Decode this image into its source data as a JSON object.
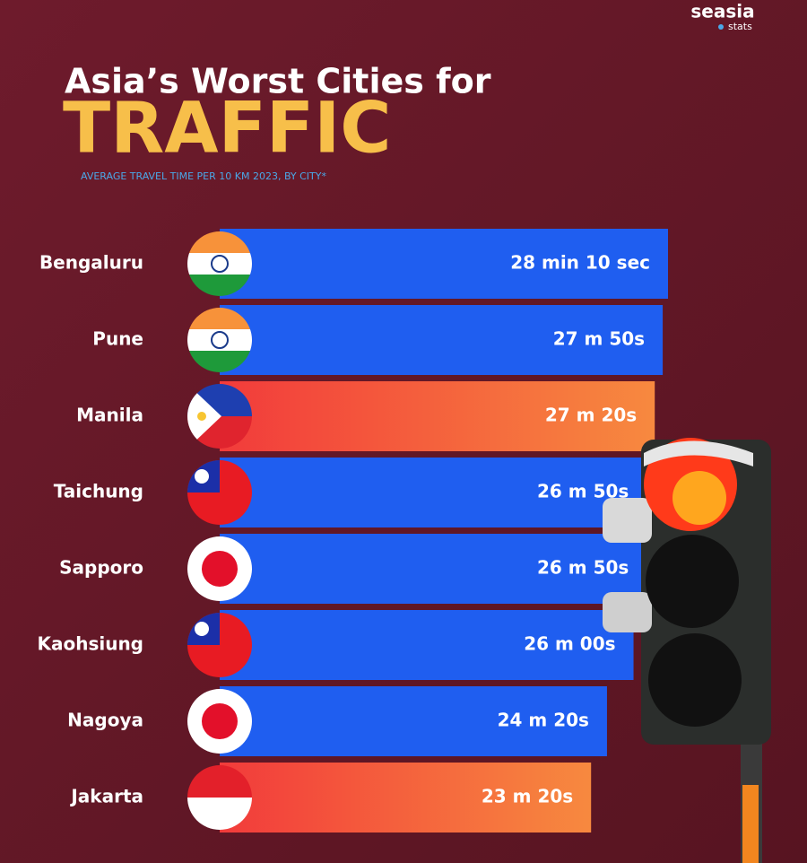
{
  "chart_data": {
    "type": "bar",
    "orientation": "horizontal",
    "brand": "seasia",
    "brand_sub": "stats",
    "title": "Asia’s Worst Cities for",
    "title_emphasis": "TRAFFIC",
    "subtitle": "AVERAGE TRAVEL TIME PER 10 KM 2023, BY CITY*",
    "categories": [
      "Bengaluru",
      "Pune",
      "Manila",
      "Taichung",
      "Sapporo",
      "Kaohsiung",
      "Nagoya",
      "Jakarta"
    ],
    "values": [
      1690,
      1670,
      1640,
      1610,
      1610,
      1560,
      1460,
      1400
    ],
    "value_labels": [
      "28 min 10 sec",
      "27 m 50s",
      "27 m 20s",
      "26 m 50s",
      "26 m 50s",
      "26 m 00s",
      "24 m 20s",
      "23 m 20s"
    ],
    "colors": [
      "#1f5ef0",
      "#1f5ef0",
      "#f0573a",
      "#1f5ef0",
      "#1f5ef0",
      "#1f5ef0",
      "#1f5ef0",
      "#f0573a"
    ]
  }
}
